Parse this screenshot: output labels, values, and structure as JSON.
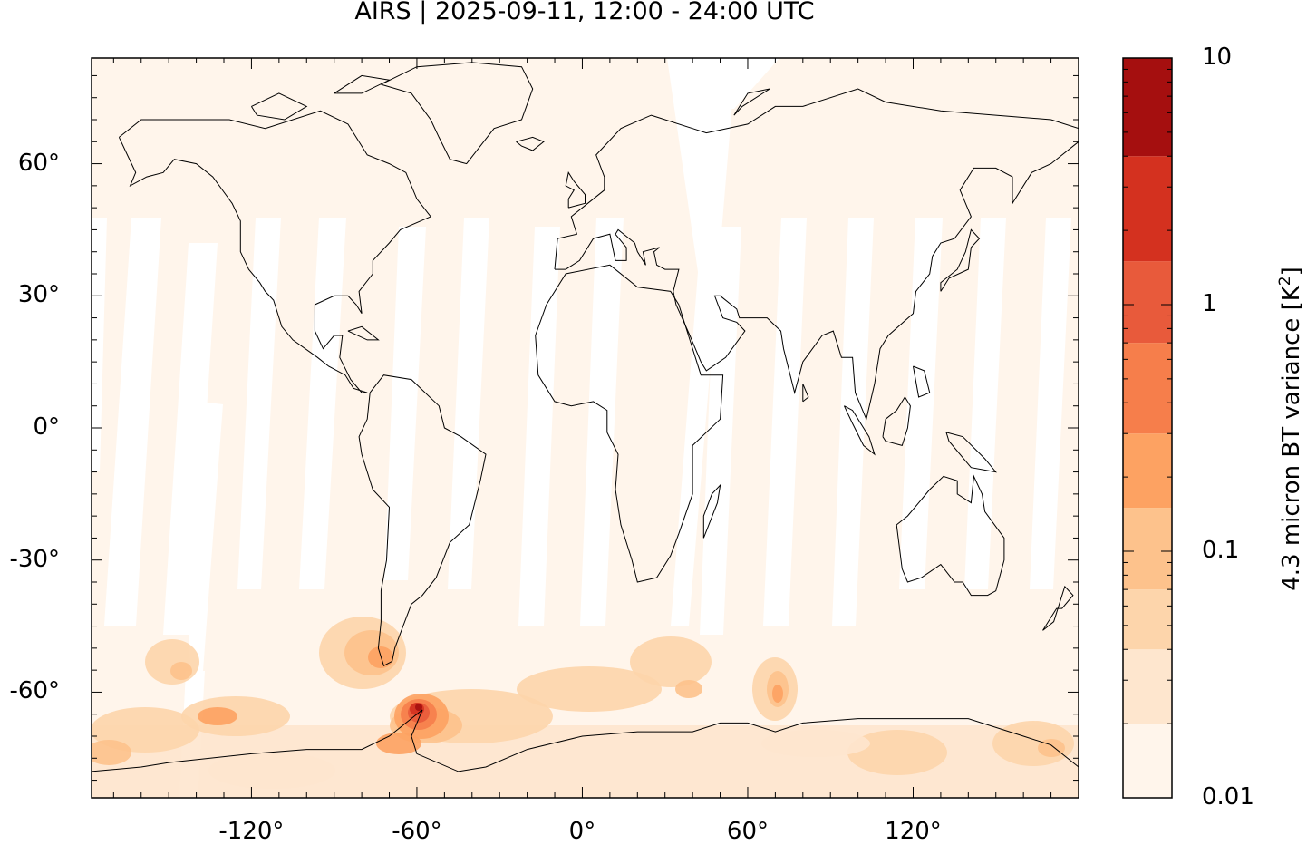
{
  "title": "AIRS | 2025-09-11, 12:00 - 24:00 UTC",
  "map": {
    "projection": "plate-carree",
    "lon_range": [
      -178,
      180
    ],
    "lat_range": [
      -84,
      84
    ],
    "x_ticks": [
      {
        "lon": -120,
        "label": "-120°"
      },
      {
        "lon": -60,
        "label": "-60°"
      },
      {
        "lon": 0,
        "label": "0°"
      },
      {
        "lon": 60,
        "label": "60°"
      },
      {
        "lon": 120,
        "label": "120°"
      }
    ],
    "y_ticks": [
      {
        "lat": 60,
        "label": "60°"
      },
      {
        "lat": 30,
        "label": "30°"
      },
      {
        "lat": 0,
        "label": "0°"
      },
      {
        "lat": -30,
        "label": "-30°"
      },
      {
        "lat": -60,
        "label": "-60°"
      }
    ],
    "background_color": "#fff5eb",
    "gap_color": "#ffffff",
    "coastline_color": "#000000"
  },
  "colorbar": {
    "label": "4.3 micron BT variance [K",
    "label_sup": "2",
    "label_close": "]",
    "scale": "log",
    "range": [
      0.01,
      10
    ],
    "tick_labels": [
      {
        "value": 10,
        "label": "10"
      },
      {
        "value": 1,
        "label": "1"
      },
      {
        "value": 0.1,
        "label": "0.1"
      },
      {
        "value": 0.01,
        "label": "0.01"
      }
    ],
    "bins": [
      {
        "from": 0.01,
        "to": 0.02,
        "color": "#fff5eb"
      },
      {
        "from": 0.02,
        "to": 0.04,
        "color": "#fee6ce"
      },
      {
        "from": 0.04,
        "to": 0.07,
        "color": "#fdd5ab"
      },
      {
        "from": 0.07,
        "to": 0.15,
        "color": "#fdc28c"
      },
      {
        "from": 0.15,
        "to": 0.3,
        "color": "#fda262"
      },
      {
        "from": 0.3,
        "to": 0.7,
        "color": "#f67e4b"
      },
      {
        "from": 0.7,
        "to": 1.5,
        "color": "#e85a3b"
      },
      {
        "from": 1.5,
        "to": 4,
        "color": "#d4311f"
      },
      {
        "from": 4,
        "to": 10,
        "color": "#a50f0f"
      }
    ]
  }
}
